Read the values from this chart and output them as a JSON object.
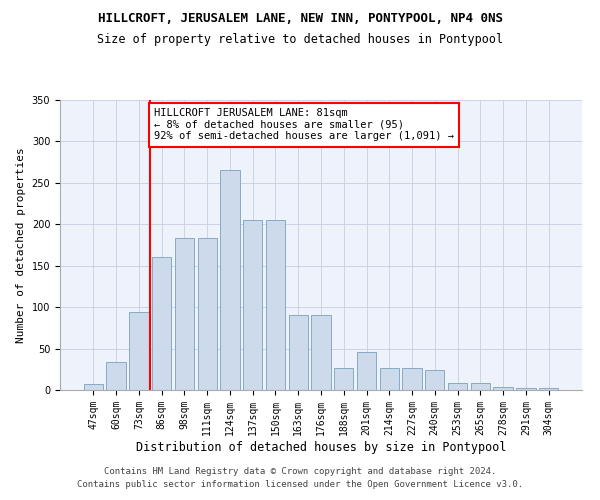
{
  "title": "HILLCROFT, JERUSALEM LANE, NEW INN, PONTYPOOL, NP4 0NS",
  "subtitle": "Size of property relative to detached houses in Pontypool",
  "xlabel": "Distribution of detached houses by size in Pontypool",
  "ylabel": "Number of detached properties",
  "bar_labels": [
    "47sqm",
    "60sqm",
    "73sqm",
    "86sqm",
    "98sqm",
    "111sqm",
    "124sqm",
    "137sqm",
    "150sqm",
    "163sqm",
    "176sqm",
    "188sqm",
    "201sqm",
    "214sqm",
    "227sqm",
    "240sqm",
    "253sqm",
    "265sqm",
    "278sqm",
    "291sqm",
    "304sqm"
  ],
  "bar_values": [
    7,
    34,
    94,
    160,
    184,
    184,
    265,
    205,
    205,
    90,
    90,
    27,
    46,
    27,
    26,
    24,
    8,
    8,
    4,
    3,
    3
  ],
  "bar_color": "#ccdaeb",
  "bar_edge_color": "#7aa0c0",
  "annotation_line1": "HILLCROFT JERUSALEM LANE: 81sqm",
  "annotation_line2": "← 8% of detached houses are smaller (95)",
  "annotation_line3": "92% of semi-detached houses are larger (1,091) →",
  "vline_x": 2.5,
  "vline_color": "red",
  "footer1": "Contains HM Land Registry data © Crown copyright and database right 2024.",
  "footer2": "Contains public sector information licensed under the Open Government Licence v3.0.",
  "ylim": [
    0,
    350
  ],
  "yticks": [
    0,
    50,
    100,
    150,
    200,
    250,
    300,
    350
  ],
  "bg_color": "#eef2fa",
  "grid_color": "#c5cfe0",
  "title_fontsize": 9,
  "subtitle_fontsize": 8.5,
  "tick_fontsize": 7,
  "ylabel_fontsize": 8,
  "xlabel_fontsize": 8.5,
  "annotation_fontsize": 7.5,
  "footer_fontsize": 6.5
}
